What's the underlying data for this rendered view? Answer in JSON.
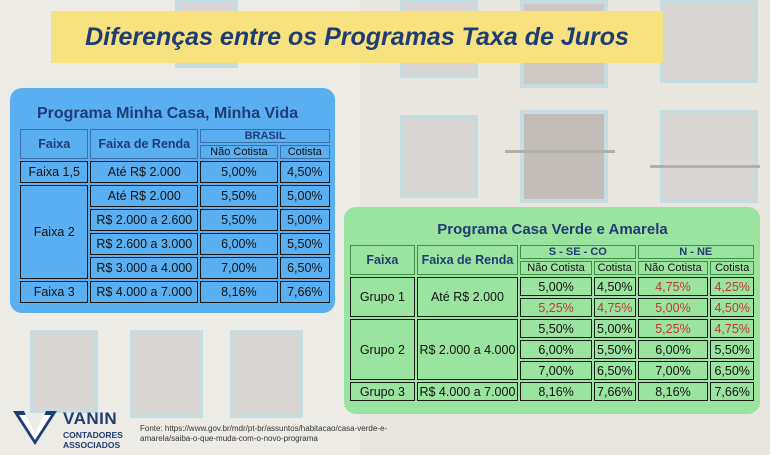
{
  "title": "Diferenças entre os Programas Taxa de Juros",
  "program1": {
    "title": "Programa Minha Casa, Minha Vida",
    "headers": {
      "faixa": "Faixa",
      "renda": "Faixa de Renda",
      "region": "BRASIL",
      "nao_cotista": "Não Cotista",
      "cotista": "Cotista"
    },
    "rows": [
      {
        "faixa": "Faixa 1,5",
        "renda": "Até R$ 2.000",
        "nao": "5,00%",
        "cot": "4,50%"
      },
      {
        "faixa": "Faixa 2",
        "renda": "Até R$ 2.000",
        "nao": "5,50%",
        "cot": "5,00%"
      },
      {
        "renda": "R$ 2.000 a 2.600",
        "nao": "5,50%",
        "cot": "5,00%"
      },
      {
        "renda": "R$ 2.600 a 3.000",
        "nao": "6,00%",
        "cot": "5,50%"
      },
      {
        "renda": "R$ 3.000 a 4.000",
        "nao": "7,00%",
        "cot": "6,50%"
      },
      {
        "faixa": "Faixa 3",
        "renda": "R$ 4.000 a 7.000",
        "nao": "8,16%",
        "cot": "7,66%"
      }
    ]
  },
  "program2": {
    "title": "Programa Casa Verde e Amarela",
    "headers": {
      "faixa": "Faixa",
      "renda": "Faixa de Renda",
      "region1": "S - SE - CO",
      "region2": "N - NE",
      "nao_cotista": "Não Cotista",
      "cotista": "Cotista"
    },
    "rows": [
      {
        "grupo": "Grupo 1",
        "renda": "Até R$ 2.000",
        "a": "5,00%",
        "b": "4,50%",
        "c": "4,75%",
        "d": "4,25%"
      },
      {
        "a": "5,25%",
        "b": "4,75%",
        "c": "5,00%",
        "d": "4,50%"
      },
      {
        "grupo": "Grupo 2",
        "renda": "R$ 2.000 a 4.000",
        "a": "5,50%",
        "b": "5,00%",
        "c": "5,25%",
        "d": "4,75%"
      },
      {
        "a": "6,00%",
        "b": "5,50%",
        "c": "6,00%",
        "d": "5,50%"
      },
      {
        "a": "7,00%",
        "b": "6,50%",
        "c": "7,00%",
        "d": "6,50%"
      },
      {
        "grupo": "Grupo 3",
        "renda": "R$ 4.000 a 7.000",
        "a": "8,16%",
        "b": "7,66%",
        "c": "8,16%",
        "d": "7,66%"
      }
    ]
  },
  "logo": {
    "name": "VANIN",
    "line1": "CONTADORES",
    "line2": "ASSOCIADOS"
  },
  "source": "Fonte:  https://www.gov.br/mdr/pt-br/assuntos/habitacao/casa-verde-e-amarela/saiba-o-que-muda-com-o-novo-programa",
  "colors": {
    "title_bg": "#f7e27f",
    "title_text": "#1f3d74",
    "panel1": "#5aaff0",
    "panel2": "#9be49f",
    "highlight_red": "#c0392b"
  }
}
